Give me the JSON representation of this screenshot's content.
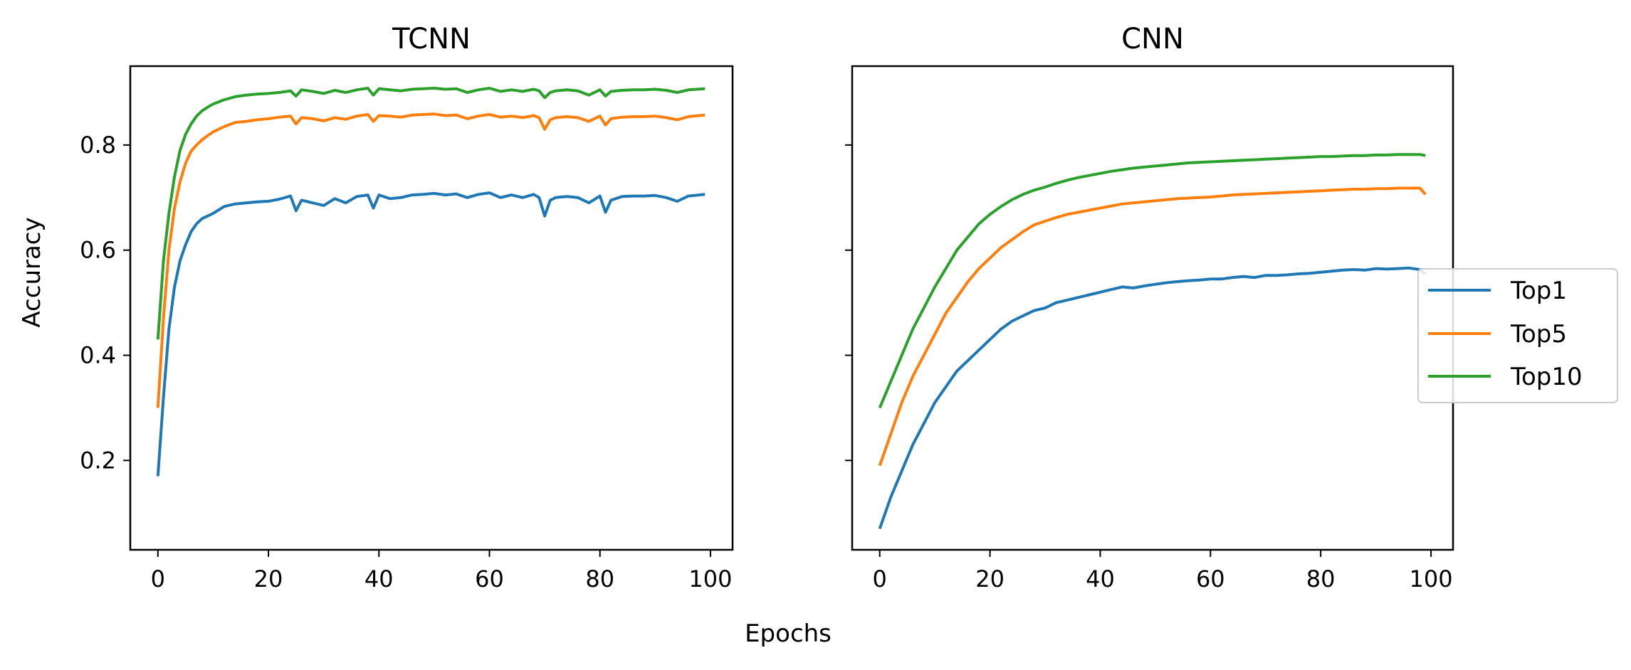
{
  "figure": {
    "xlabel": "Epochs",
    "ylabel": "Accuracy"
  },
  "legend": {
    "placement": "right, outside panels (center-right)",
    "entries": [
      {
        "name": "Top1",
        "color": "#1f77b4"
      },
      {
        "name": "Top5",
        "color": "#ff7f0e"
      },
      {
        "name": "Top10",
        "color": "#2ca02c"
      }
    ]
  },
  "chart_data": [
    {
      "type": "line",
      "title": "TCNN",
      "xlim": [
        -5,
        104
      ],
      "ylim": [
        0.03,
        0.95
      ],
      "xticks": [
        0,
        20,
        40,
        60,
        80,
        100
      ],
      "yticks": [
        0.2,
        0.4,
        0.6,
        0.8
      ],
      "xtick_labels": [
        "0",
        "20",
        "40",
        "60",
        "80",
        "100"
      ],
      "ytick_labels": [
        "0.2",
        "0.4",
        "0.6",
        "0.8"
      ],
      "x": [
        0,
        1,
        2,
        3,
        4,
        5,
        6,
        7,
        8,
        9,
        10,
        12,
        14,
        16,
        18,
        20,
        22,
        24,
        25,
        26,
        28,
        30,
        32,
        34,
        36,
        38,
        39,
        40,
        42,
        44,
        46,
        48,
        50,
        52,
        54,
        56,
        58,
        60,
        62,
        64,
        66,
        68,
        69,
        70,
        71,
        72,
        74,
        76,
        78,
        80,
        81,
        82,
        84,
        86,
        88,
        90,
        92,
        94,
        96,
        99
      ],
      "series": [
        {
          "name": "Top1",
          "color": "#1f77b4",
          "values": [
            0.17,
            0.32,
            0.45,
            0.53,
            0.58,
            0.61,
            0.635,
            0.65,
            0.66,
            0.665,
            0.67,
            0.683,
            0.688,
            0.69,
            0.692,
            0.693,
            0.697,
            0.703,
            0.675,
            0.695,
            0.69,
            0.685,
            0.698,
            0.69,
            0.702,
            0.705,
            0.68,
            0.705,
            0.698,
            0.7,
            0.705,
            0.706,
            0.708,
            0.705,
            0.707,
            0.7,
            0.706,
            0.709,
            0.7,
            0.705,
            0.7,
            0.706,
            0.7,
            0.665,
            0.695,
            0.7,
            0.702,
            0.7,
            0.69,
            0.703,
            0.672,
            0.695,
            0.702,
            0.703,
            0.703,
            0.704,
            0.7,
            0.693,
            0.703,
            0.706
          ]
        },
        {
          "name": "Top5",
          "color": "#ff7f0e",
          "values": [
            0.3,
            0.47,
            0.6,
            0.68,
            0.73,
            0.765,
            0.788,
            0.8,
            0.81,
            0.818,
            0.825,
            0.835,
            0.843,
            0.845,
            0.848,
            0.85,
            0.853,
            0.855,
            0.84,
            0.852,
            0.85,
            0.846,
            0.852,
            0.849,
            0.855,
            0.858,
            0.845,
            0.856,
            0.855,
            0.853,
            0.857,
            0.858,
            0.859,
            0.856,
            0.857,
            0.85,
            0.855,
            0.858,
            0.853,
            0.855,
            0.852,
            0.856,
            0.852,
            0.83,
            0.848,
            0.852,
            0.854,
            0.852,
            0.845,
            0.855,
            0.838,
            0.85,
            0.853,
            0.854,
            0.854,
            0.855,
            0.852,
            0.848,
            0.854,
            0.857
          ]
        },
        {
          "name": "Top10",
          "color": "#2ca02c",
          "values": [
            0.43,
            0.58,
            0.67,
            0.74,
            0.79,
            0.82,
            0.84,
            0.855,
            0.865,
            0.872,
            0.878,
            0.886,
            0.892,
            0.895,
            0.897,
            0.898,
            0.9,
            0.903,
            0.893,
            0.905,
            0.902,
            0.898,
            0.904,
            0.9,
            0.905,
            0.908,
            0.895,
            0.907,
            0.905,
            0.903,
            0.906,
            0.907,
            0.908,
            0.906,
            0.907,
            0.9,
            0.905,
            0.908,
            0.902,
            0.905,
            0.902,
            0.906,
            0.903,
            0.89,
            0.9,
            0.903,
            0.905,
            0.903,
            0.895,
            0.905,
            0.893,
            0.902,
            0.904,
            0.905,
            0.905,
            0.906,
            0.904,
            0.9,
            0.905,
            0.907
          ]
        }
      ]
    },
    {
      "type": "line",
      "title": "CNN",
      "xlim": [
        -5,
        104
      ],
      "ylim": [
        0.03,
        0.95
      ],
      "xticks": [
        0,
        20,
        40,
        60,
        80,
        100
      ],
      "yticks": [
        0.2,
        0.4,
        0.6,
        0.8
      ],
      "xtick_labels": [
        "0",
        "20",
        "40",
        "60",
        "80",
        "100"
      ],
      "ytick_labels": [],
      "x": [
        0,
        2,
        4,
        6,
        8,
        10,
        12,
        14,
        16,
        18,
        20,
        22,
        24,
        26,
        28,
        30,
        32,
        34,
        36,
        38,
        40,
        42,
        44,
        46,
        48,
        50,
        52,
        54,
        56,
        58,
        60,
        62,
        64,
        66,
        68,
        70,
        72,
        74,
        76,
        78,
        80,
        82,
        84,
        86,
        88,
        90,
        92,
        94,
        96,
        98,
        99
      ],
      "series": [
        {
          "name": "Top1",
          "color": "#1f77b4",
          "values": [
            0.07,
            0.13,
            0.18,
            0.23,
            0.27,
            0.31,
            0.34,
            0.37,
            0.39,
            0.41,
            0.43,
            0.45,
            0.465,
            0.475,
            0.485,
            0.49,
            0.5,
            0.505,
            0.51,
            0.515,
            0.52,
            0.525,
            0.53,
            0.528,
            0.532,
            0.535,
            0.538,
            0.54,
            0.542,
            0.543,
            0.545,
            0.545,
            0.548,
            0.55,
            0.548,
            0.552,
            0.552,
            0.553,
            0.555,
            0.556,
            0.558,
            0.56,
            0.562,
            0.563,
            0.562,
            0.565,
            0.564,
            0.565,
            0.566,
            0.563,
            0.555
          ]
        },
        {
          "name": "Top5",
          "color": "#ff7f0e",
          "values": [
            0.19,
            0.25,
            0.31,
            0.36,
            0.4,
            0.44,
            0.48,
            0.51,
            0.54,
            0.565,
            0.585,
            0.605,
            0.62,
            0.635,
            0.648,
            0.655,
            0.662,
            0.668,
            0.672,
            0.676,
            0.68,
            0.684,
            0.688,
            0.69,
            0.692,
            0.694,
            0.696,
            0.698,
            0.699,
            0.7,
            0.701,
            0.703,
            0.705,
            0.706,
            0.707,
            0.708,
            0.709,
            0.71,
            0.711,
            0.712,
            0.713,
            0.714,
            0.715,
            0.716,
            0.716,
            0.717,
            0.717,
            0.718,
            0.718,
            0.718,
            0.706
          ]
        },
        {
          "name": "Top10",
          "color": "#2ca02c",
          "values": [
            0.3,
            0.35,
            0.4,
            0.45,
            0.49,
            0.53,
            0.565,
            0.6,
            0.625,
            0.65,
            0.668,
            0.683,
            0.696,
            0.706,
            0.714,
            0.72,
            0.727,
            0.733,
            0.738,
            0.742,
            0.746,
            0.75,
            0.753,
            0.756,
            0.758,
            0.76,
            0.762,
            0.764,
            0.766,
            0.767,
            0.768,
            0.769,
            0.77,
            0.771,
            0.772,
            0.773,
            0.774,
            0.775,
            0.776,
            0.777,
            0.778,
            0.778,
            0.779,
            0.78,
            0.78,
            0.781,
            0.781,
            0.782,
            0.782,
            0.782,
            0.78
          ]
        }
      ]
    }
  ]
}
